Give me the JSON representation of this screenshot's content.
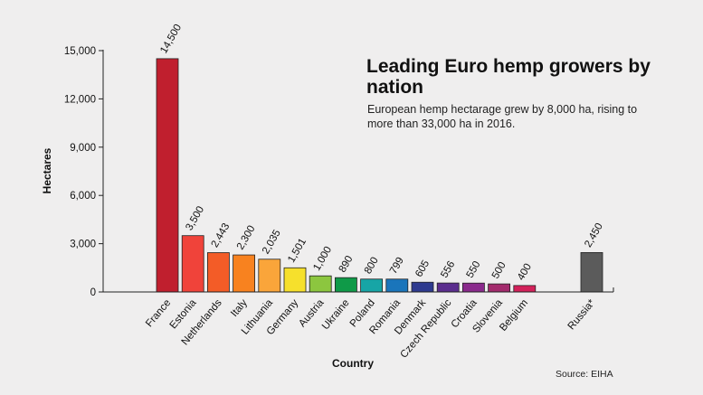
{
  "chart_data": {
    "type": "bar",
    "title": "Leading Euro hemp growers by nation",
    "subtitle": "European hemp hectarage grew by 8,000 ha, rising to more than 33,000 ha in 2016.",
    "xlabel": "Country",
    "ylabel": "Hectares",
    "source": "Source: EIHA",
    "ylim": [
      0,
      15000
    ],
    "yticks": [
      0,
      3000,
      6000,
      9000,
      12000,
      15000
    ],
    "ytick_labels": [
      "0",
      "3,000",
      "6,000",
      "9,000",
      "12,000",
      "15,000"
    ],
    "grid": false,
    "categories": [
      "France",
      "Estonia",
      "Netherlands",
      "Italy",
      "Lithuania",
      "Germany",
      "Austria",
      "Ukraine",
      "Poland",
      "Romania",
      "Denmark",
      "Czech Republic",
      "Croatia",
      "Slovenia",
      "Belgium",
      "Russia*"
    ],
    "values": [
      14500,
      3500,
      2443,
      2300,
      2035,
      1501,
      1000,
      890,
      800,
      799,
      605,
      556,
      550,
      500,
      400,
      2450
    ],
    "value_labels": [
      "14,500",
      "3,500",
      "2,443",
      "2,300",
      "2,035",
      "1,501",
      "1,000",
      "890",
      "800",
      "799",
      "605",
      "556",
      "550",
      "500",
      "400",
      "2,450"
    ],
    "colors": [
      "#c01f2e",
      "#f0433a",
      "#f35c27",
      "#f8821f",
      "#faa53a",
      "#f6e02c",
      "#8cc63f",
      "#0f9a48",
      "#17a5a6",
      "#1a75bb",
      "#2e3a8f",
      "#5b2d8e",
      "#8a2a8c",
      "#a32a6c",
      "#d3215a",
      "#5b5b5b"
    ]
  }
}
